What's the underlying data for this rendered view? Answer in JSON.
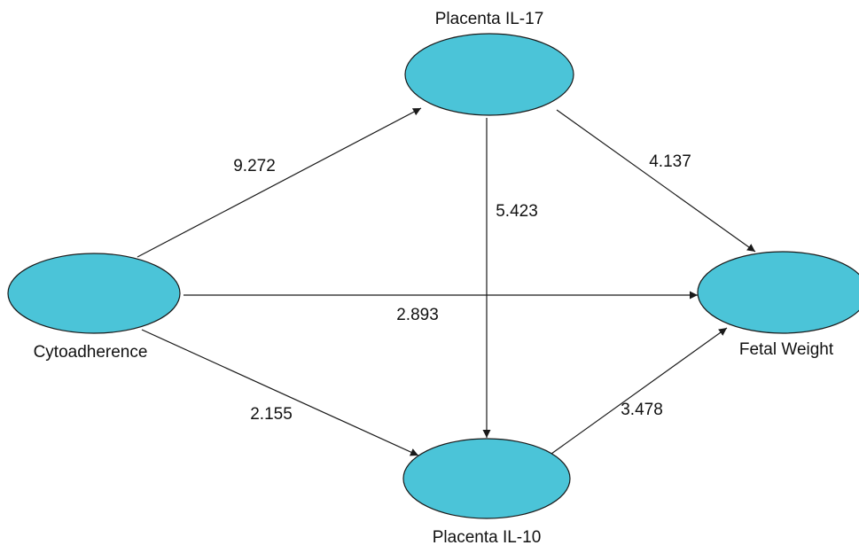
{
  "diagram": {
    "colors": {
      "node_fill": "#4bc4d8",
      "stroke": "#1a1a1a",
      "text": "#111111",
      "background": "#ffffff"
    },
    "nodes": [
      {
        "id": "cytoadherence",
        "label": "Cytoadherence"
      },
      {
        "id": "placenta_il17",
        "label": "Placenta IL-17"
      },
      {
        "id": "placenta_il10",
        "label": "Placenta IL-10"
      },
      {
        "id": "fetal_weight",
        "label": "Fetal Weight"
      }
    ],
    "edges": [
      {
        "from": "cytoadherence",
        "to": "placenta_il17",
        "label": "9.272"
      },
      {
        "from": "placenta_il17",
        "to": "fetal_weight",
        "label": "4.137"
      },
      {
        "from": "placenta_il17",
        "to": "placenta_il10",
        "label": "5.423"
      },
      {
        "from": "cytoadherence",
        "to": "fetal_weight",
        "label": "2.893"
      },
      {
        "from": "cytoadherence",
        "to": "placenta_il10",
        "label": "2.155"
      },
      {
        "from": "placenta_il10",
        "to": "fetal_weight",
        "label": "3.478"
      }
    ]
  }
}
